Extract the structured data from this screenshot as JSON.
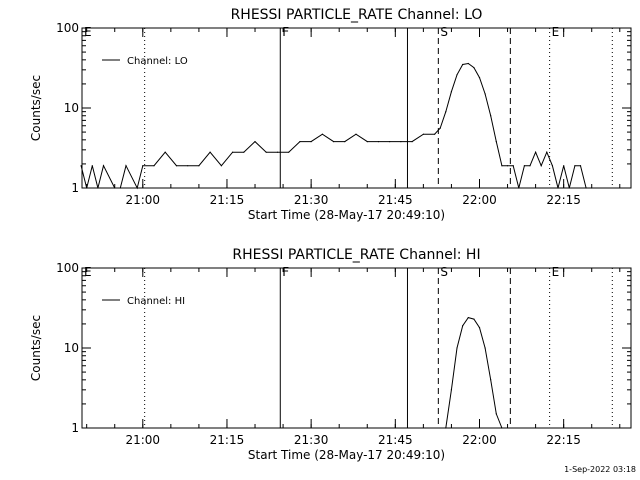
{
  "footer_timestamp": "1-Sep-2022 03:18",
  "chart_data": [
    {
      "type": "line",
      "title": "RHESSI PARTICLE_RATE Channel: LO",
      "xlabel": "Start Time (28-May-17 20:49:10)",
      "ylabel": "Counts/sec",
      "y_scale": "log",
      "ylim": [
        1,
        100
      ],
      "y_tick_labels": [
        "1",
        "10",
        "100"
      ],
      "xlim": [
        "20:49:10",
        "22:27:00"
      ],
      "x_tick_labels": [
        "21:00",
        "21:15",
        "21:30",
        "21:45",
        "22:00",
        "22:15"
      ],
      "legend": "top-left",
      "series": [
        {
          "name": "Channel: LO",
          "x": [
            "20:49",
            "20:50",
            "20:51",
            "20:52",
            "20:53",
            "20:55",
            "20:56",
            "20:57",
            "20:59",
            "21:00",
            "21:02",
            "21:04",
            "21:06",
            "21:08",
            "21:10",
            "21:12",
            "21:14",
            "21:16",
            "21:18",
            "21:20",
            "21:22",
            "21:24",
            "21:26",
            "21:28",
            "21:30",
            "21:32",
            "21:34",
            "21:36",
            "21:38",
            "21:40",
            "21:42",
            "21:44",
            "21:46",
            "21:48",
            "21:50",
            "21:52",
            "21:53",
            "21:54",
            "21:55",
            "21:56",
            "21:57",
            "21:58",
            "21:59",
            "22:00",
            "22:01",
            "22:02",
            "22:03",
            "22:04",
            "22:05",
            "22:06",
            "22:07",
            "22:08",
            "22:09",
            "22:10",
            "22:11",
            "22:12",
            "22:13",
            "22:14",
            "22:15",
            "22:16",
            "22:17",
            "22:18",
            "22:19",
            "22:20"
          ],
          "values": [
            1.9,
            1,
            1.9,
            1,
            1.9,
            1,
            1,
            1.9,
            1,
            1.9,
            1.9,
            2.8,
            1.9,
            1.9,
            1.9,
            2.8,
            1.9,
            2.8,
            2.8,
            3.8,
            2.8,
            2.8,
            2.8,
            3.8,
            3.8,
            4.7,
            3.8,
            3.8,
            4.7,
            3.8,
            3.8,
            3.8,
            3.8,
            3.8,
            4.7,
            4.7,
            5.6,
            9,
            16,
            26,
            35,
            36,
            32,
            24,
            15,
            8,
            3.8,
            1.9,
            1.9,
            1.9,
            1,
            1.9,
            1.9,
            2.8,
            1.9,
            2.8,
            1.9,
            1,
            1.9,
            1,
            1.9,
            1.9,
            1,
            1
          ]
        }
      ],
      "markers": [
        {
          "label": "E",
          "time": "20:49:10",
          "style": "dotted"
        },
        {
          "label": "",
          "time": "21:00:20",
          "style": "dotted"
        },
        {
          "label": "F",
          "time": "21:24:30",
          "style": "solid"
        },
        {
          "label": "",
          "time": "21:47:10",
          "style": "solid"
        },
        {
          "label": "S",
          "time": "21:52:40",
          "style": "dashed"
        },
        {
          "label": "",
          "time": "22:05:30",
          "style": "dashed"
        },
        {
          "label": "E",
          "time": "22:12:30",
          "style": "dotted"
        },
        {
          "label": "",
          "time": "22:23:40",
          "style": "dotted"
        }
      ]
    },
    {
      "type": "line",
      "title": "RHESSI PARTICLE_RATE Channel: HI",
      "xlabel": "Start Time (28-May-17 20:49:10)",
      "ylabel": "Counts/sec",
      "y_scale": "log",
      "ylim": [
        1,
        100
      ],
      "y_tick_labels": [
        "1",
        "10",
        "100"
      ],
      "xlim": [
        "20:49:10",
        "22:27:00"
      ],
      "x_tick_labels": [
        "21:00",
        "21:15",
        "21:30",
        "21:45",
        "22:00",
        "22:15"
      ],
      "legend": "top-left",
      "series": [
        {
          "name": "Channel: HI",
          "x": [
            "21:54",
            "21:55",
            "21:56",
            "21:57",
            "21:58",
            "21:59",
            "22:00",
            "22:01",
            "22:02",
            "22:03",
            "22:04"
          ],
          "values": [
            1,
            3,
            10,
            19,
            24,
            23,
            18,
            10,
            4,
            1.5,
            1
          ]
        }
      ],
      "markers": [
        {
          "label": "E",
          "time": "20:49:10",
          "style": "dotted"
        },
        {
          "label": "",
          "time": "21:00:20",
          "style": "dotted"
        },
        {
          "label": "F",
          "time": "21:24:30",
          "style": "solid"
        },
        {
          "label": "",
          "time": "21:47:10",
          "style": "solid"
        },
        {
          "label": "S",
          "time": "21:52:40",
          "style": "dashed"
        },
        {
          "label": "",
          "time": "22:05:30",
          "style": "dashed"
        },
        {
          "label": "E",
          "time": "22:12:30",
          "style": "dotted"
        },
        {
          "label": "",
          "time": "22:23:40",
          "style": "dotted"
        }
      ]
    }
  ]
}
